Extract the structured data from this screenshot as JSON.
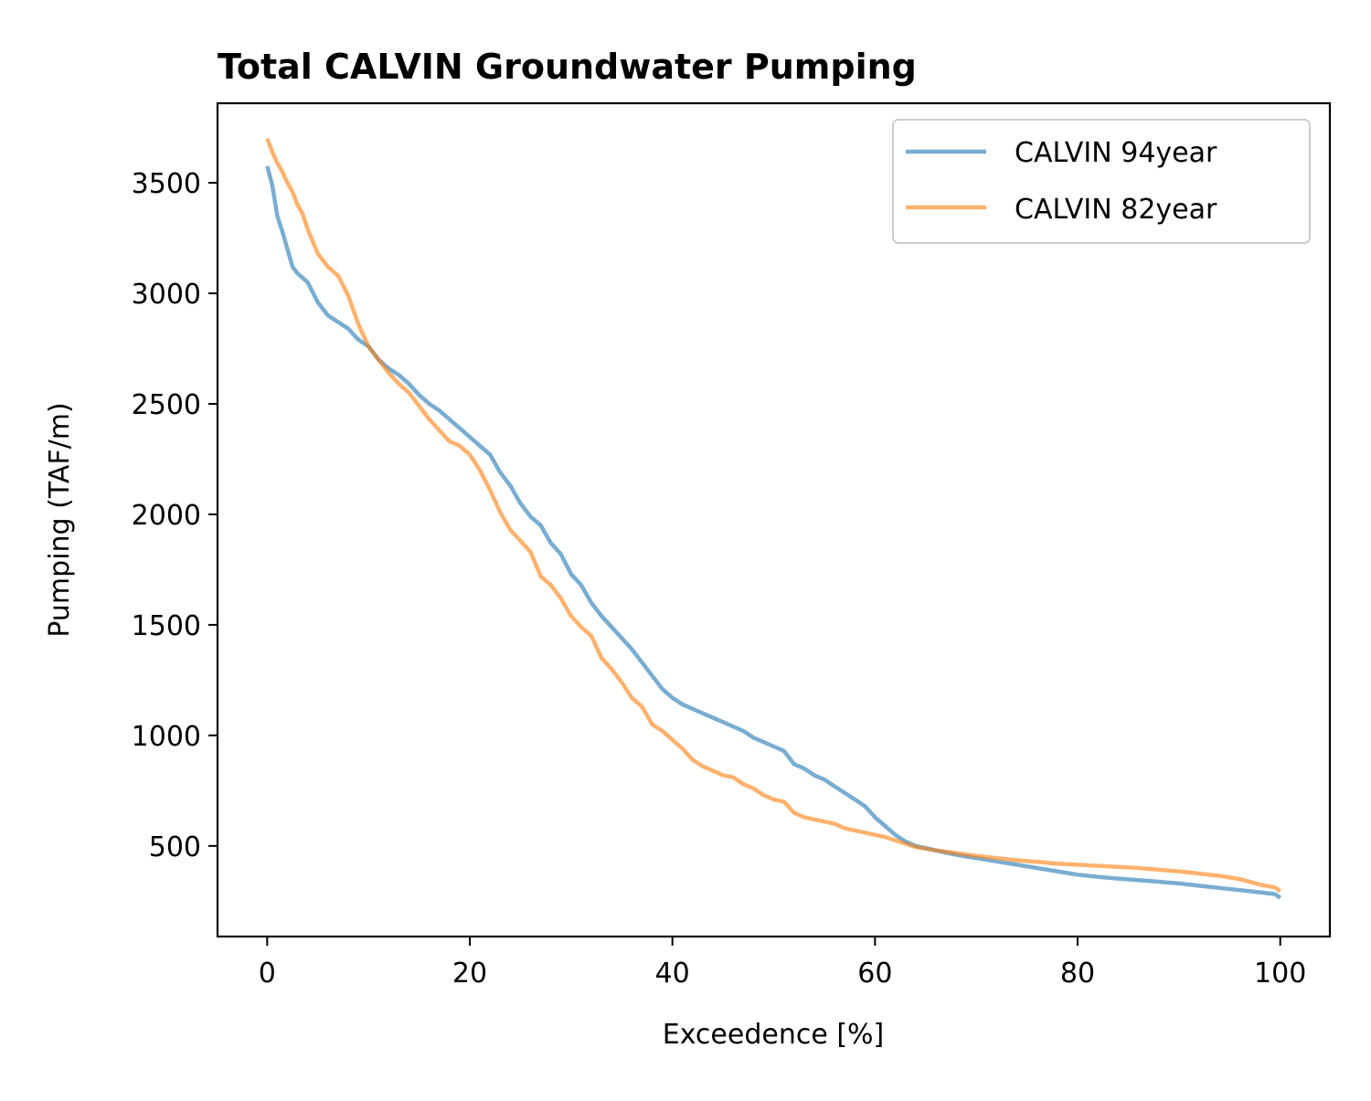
{
  "chart_data": {
    "type": "line",
    "title": "Total CALVIN Groundwater Pumping",
    "xlabel": "Exceedence [%]",
    "ylabel": "Pumping (TAF/m)",
    "xlim": [
      -4.9,
      104.9
    ],
    "ylim": [
      90,
      3860
    ],
    "xticks": [
      0,
      20,
      40,
      60,
      80,
      100
    ],
    "yticks": [
      500,
      1000,
      1500,
      2000,
      2500,
      3000,
      3500
    ],
    "xtick_labels": [
      "0",
      "20",
      "40",
      "60",
      "80",
      "100"
    ],
    "ytick_labels": [
      "500",
      "1000",
      "1500",
      "2000",
      "2500",
      "3000",
      "3500"
    ],
    "grid": false,
    "legend_position": "top-right",
    "series": [
      {
        "name": "CALVIN 94year",
        "color": "#1f77b4",
        "opacity": 0.6,
        "x": [
          0,
          0.5,
          1,
          1.5,
          2,
          2.5,
          3,
          4,
          5,
          6,
          7,
          8,
          9,
          10,
          11,
          12,
          13,
          14,
          15,
          16,
          17,
          18,
          19,
          20,
          21,
          22,
          23,
          24,
          25,
          26,
          27,
          28,
          29,
          30,
          31,
          32,
          33,
          34,
          35,
          36,
          37,
          38,
          39,
          40,
          41,
          42,
          43,
          44,
          45,
          46,
          47,
          48,
          49,
          50,
          51,
          52,
          53,
          54,
          55,
          56,
          57,
          58,
          59,
          60,
          61,
          62,
          63,
          64,
          66,
          68,
          70,
          72,
          74,
          76,
          78,
          80,
          82,
          84,
          86,
          88,
          90,
          92,
          94,
          96,
          98,
          99.5,
          100
        ],
        "y": [
          3575,
          3490,
          3350,
          3280,
          3200,
          3120,
          3090,
          3050,
          2960,
          2900,
          2870,
          2840,
          2790,
          2760,
          2700,
          2660,
          2630,
          2590,
          2540,
          2500,
          2470,
          2430,
          2390,
          2350,
          2310,
          2270,
          2190,
          2130,
          2050,
          1990,
          1950,
          1870,
          1820,
          1730,
          1680,
          1600,
          1540,
          1490,
          1440,
          1390,
          1330,
          1270,
          1210,
          1170,
          1140,
          1120,
          1100,
          1080,
          1060,
          1040,
          1020,
          990,
          970,
          950,
          930,
          870,
          850,
          820,
          800,
          770,
          740,
          710,
          680,
          630,
          590,
          550,
          520,
          500,
          480,
          460,
          445,
          430,
          415,
          400,
          385,
          370,
          360,
          352,
          345,
          338,
          330,
          320,
          310,
          300,
          290,
          282,
          265
        ]
      },
      {
        "name": "CALVIN 82year",
        "color": "#ff7f0e",
        "opacity": 0.6,
        "x": [
          0,
          0.5,
          1,
          1.5,
          2,
          2.5,
          3,
          3.5,
          4,
          5,
          6,
          7,
          8,
          9,
          10,
          11,
          12,
          13,
          14,
          15,
          16,
          17,
          18,
          19,
          20,
          21,
          22,
          23,
          24,
          25,
          26,
          27,
          28,
          29,
          30,
          31,
          32,
          33,
          34,
          35,
          36,
          37,
          38,
          39,
          40,
          41,
          42,
          43,
          44,
          45,
          46,
          47,
          48,
          49,
          50,
          51,
          52,
          53,
          54,
          55,
          56,
          57,
          58,
          59,
          60,
          61,
          62,
          63,
          64,
          66,
          68,
          70,
          72,
          74,
          76,
          78,
          80,
          82,
          84,
          86,
          88,
          90,
          92,
          94,
          96,
          98,
          99.5,
          100
        ],
        "y": [
          3700,
          3640,
          3590,
          3550,
          3500,
          3460,
          3400,
          3360,
          3290,
          3180,
          3120,
          3080,
          2990,
          2860,
          2760,
          2700,
          2640,
          2590,
          2550,
          2490,
          2430,
          2380,
          2330,
          2310,
          2270,
          2200,
          2110,
          2010,
          1930,
          1880,
          1830,
          1720,
          1680,
          1620,
          1540,
          1490,
          1450,
          1350,
          1300,
          1240,
          1170,
          1130,
          1050,
          1020,
          980,
          940,
          890,
          860,
          840,
          820,
          810,
          780,
          760,
          730,
          710,
          700,
          650,
          630,
          620,
          610,
          600,
          580,
          570,
          560,
          550,
          540,
          525,
          510,
          495,
          480,
          468,
          455,
          445,
          435,
          428,
          420,
          415,
          410,
          405,
          400,
          392,
          385,
          375,
          365,
          350,
          325,
          312,
          295
        ]
      }
    ]
  }
}
